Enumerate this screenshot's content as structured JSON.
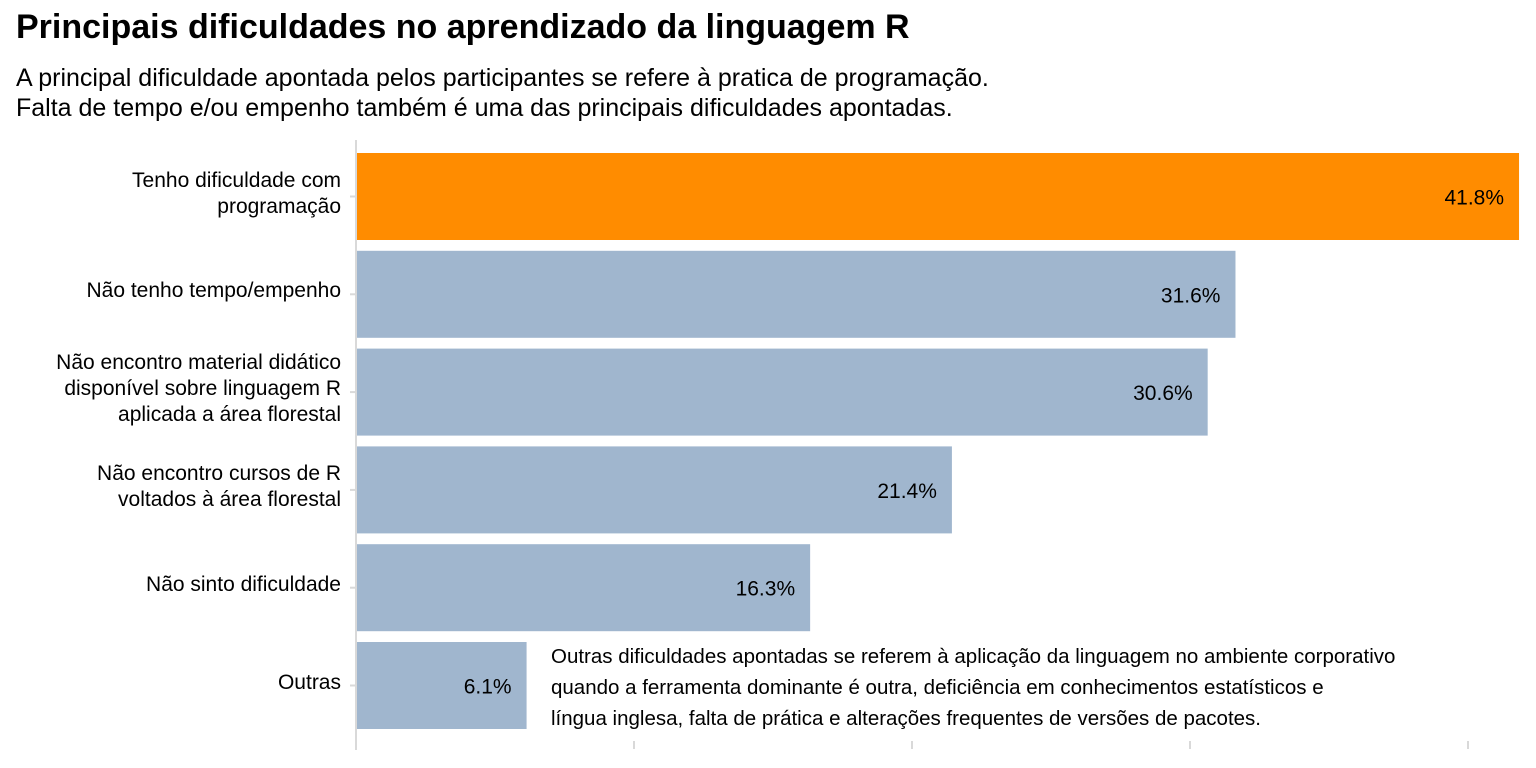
{
  "title": "Principais dificuldades no aprendizado da linguagem R",
  "subtitle": [
    "A principal dificuldade apontada pelos participantes se refere à pratica de programação.",
    "Falta de tempo e/ou empenho também é uma das principais dificuldades apontadas."
  ],
  "annotation": "Outras dificuldades apontadas se referem à aplicação da linguagem no ambiente corporativo\nquando a ferramenta dominante é outra, deficiência em conhecimentos estatísticos e\nlíngua inglesa, falta de prática e alterações frequentes de versões de pacotes.",
  "colors": {
    "highlight": "#FF8C00",
    "bar": "#A0B6CE",
    "axis": "#D9D9D9",
    "text": "#000000"
  },
  "chart_data": {
    "type": "bar",
    "orientation": "horizontal",
    "categories": [
      "Tenho dificuldade com\nprogramação",
      "Não tenho tempo/empenho",
      "Não encontro material didático\ndisponível sobre linguagem R\naplicada a área florestal",
      "Não encontro cursos de R\nvoltados à área florestal",
      "Não sinto dificuldade",
      "Outras"
    ],
    "values": [
      41.8,
      31.6,
      30.6,
      21.4,
      16.3,
      6.1
    ],
    "value_labels": [
      "41.8%",
      "31.6%",
      "30.6%",
      "21.4%",
      "16.3%",
      "6.1%"
    ],
    "highlight_index": 0,
    "unit": "%",
    "xlim": [
      0,
      42
    ],
    "x_ticks": [
      0,
      10,
      20,
      30,
      40
    ],
    "x_tick_labels_shown": false,
    "grid": false,
    "xlabel": "",
    "ylabel": ""
  }
}
